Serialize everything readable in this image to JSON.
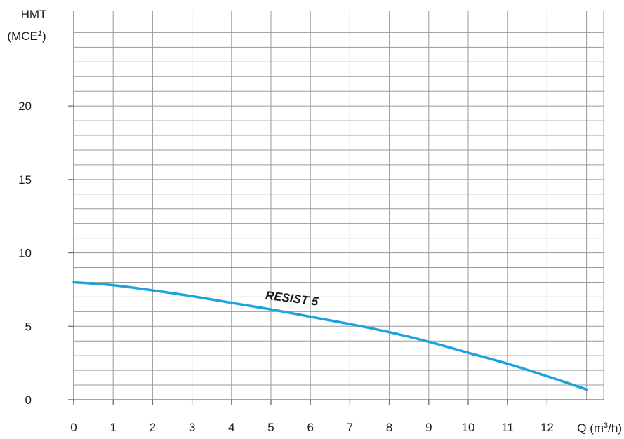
{
  "chart_data": {
    "type": "line",
    "y_title_line1": "HMT",
    "y_title_line2_main": "(MCE",
    "y_title_line2_sup": "1",
    "y_title_line2_end": ")",
    "x_title_main": "Q (m",
    "x_title_sup": "3",
    "x_title_end": "/h)",
    "xlim": [
      0,
      13.3
    ],
    "ylim": [
      0,
      26.5
    ],
    "x_ticks": [
      0,
      1,
      2,
      3,
      4,
      5,
      6,
      7,
      8,
      9,
      10,
      11,
      12
    ],
    "y_ticks": [
      0,
      5,
      10,
      15,
      20
    ],
    "grid": true,
    "series": [
      {
        "name": "RESIST 5",
        "color": "#1aa3dc",
        "x": [
          0,
          1,
          2,
          3,
          4,
          5,
          6,
          7,
          8,
          9,
          10,
          11,
          12,
          13
        ],
        "y": [
          8.0,
          7.8,
          7.45,
          7.05,
          6.6,
          6.15,
          5.65,
          5.15,
          4.6,
          3.95,
          3.2,
          2.45,
          1.6,
          0.7
        ]
      }
    ]
  }
}
